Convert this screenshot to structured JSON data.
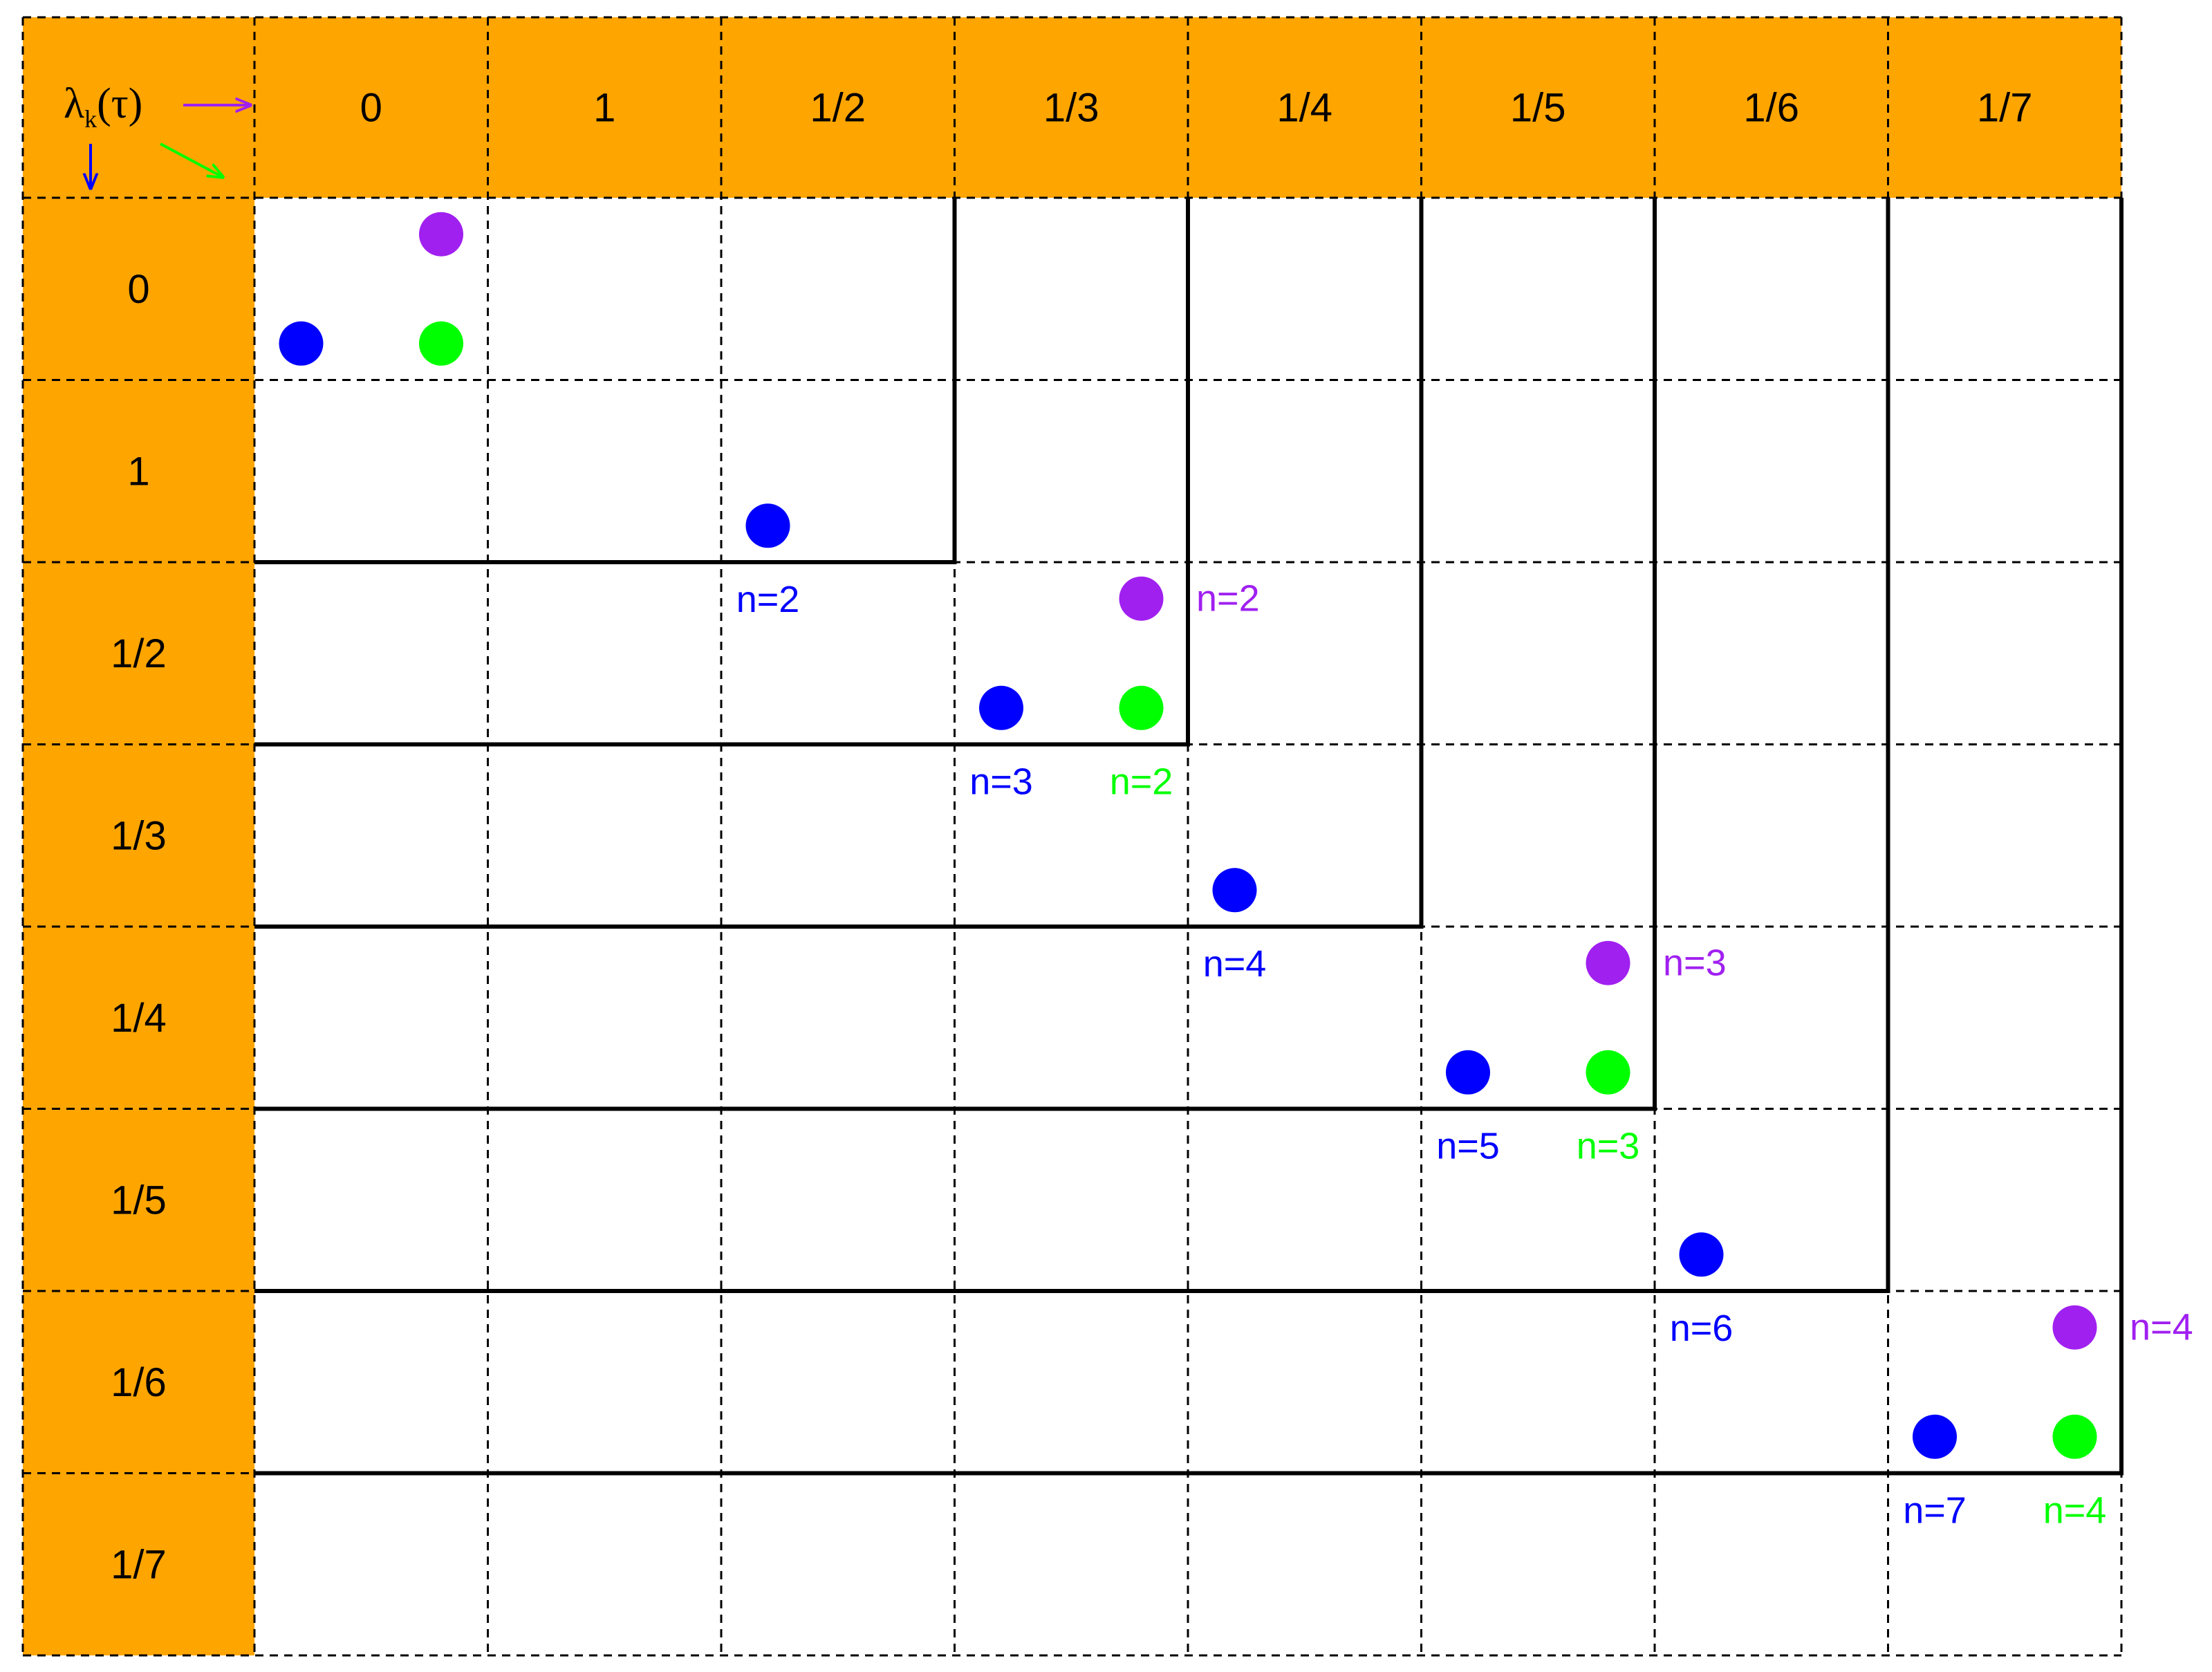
{
  "colors": {
    "header_fill": "#FFA500",
    "grid_line": "#000000",
    "boundary_line": "#000000",
    "blue": "#0000FF",
    "purple": "#A020F0",
    "green": "#00FF00",
    "background": "#FFFFFF"
  },
  "corner": {
    "symbol": "λ",
    "subscript": "k",
    "argument": "(τ)",
    "arrows": [
      {
        "direction": "right",
        "color": "purple"
      },
      {
        "direction": "down",
        "color": "blue"
      },
      {
        "direction": "diagonal",
        "color": "green"
      }
    ]
  },
  "column_headers": [
    "0",
    "1",
    "1/2",
    "1/3",
    "1/4",
    "1/5",
    "1/6",
    "1/7"
  ],
  "row_headers": [
    "0",
    "1",
    "1/2",
    "1/3",
    "1/4",
    "1/5",
    "1/6",
    "1/7"
  ],
  "staircase_boundaries": [
    {
      "row": 1,
      "col": 2
    },
    {
      "row": 2,
      "col": 3
    },
    {
      "row": 3,
      "col": 4
    },
    {
      "row": 4,
      "col": 5
    },
    {
      "row": 5,
      "col": 6
    },
    {
      "row": 6,
      "col": 7
    }
  ],
  "points": [
    {
      "color": "purple",
      "row": 0,
      "col": 0,
      "sub": "top",
      "label": ""
    },
    {
      "color": "blue",
      "row": 0,
      "col": 0,
      "sub": "bottom-left",
      "label": ""
    },
    {
      "color": "green",
      "row": 0,
      "col": 0,
      "sub": "bottom-right",
      "label": ""
    },
    {
      "color": "blue",
      "row": 1,
      "col": 2,
      "sub": "bottom-left",
      "label": "n=2"
    },
    {
      "color": "purple",
      "row": 2,
      "col": 3,
      "sub": "top",
      "label": "n=2"
    },
    {
      "color": "blue",
      "row": 2,
      "col": 3,
      "sub": "bottom-left",
      "label": "n=3"
    },
    {
      "color": "green",
      "row": 2,
      "col": 3,
      "sub": "bottom-right",
      "label": "n=2"
    },
    {
      "color": "blue",
      "row": 3,
      "col": 4,
      "sub": "bottom-left",
      "label": "n=4"
    },
    {
      "color": "purple",
      "row": 4,
      "col": 5,
      "sub": "top",
      "label": "n=3"
    },
    {
      "color": "blue",
      "row": 4,
      "col": 5,
      "sub": "bottom-left",
      "label": "n=5"
    },
    {
      "color": "green",
      "row": 4,
      "col": 5,
      "sub": "bottom-right",
      "label": "n=3"
    },
    {
      "color": "blue",
      "row": 5,
      "col": 6,
      "sub": "bottom-left",
      "label": "n=6"
    },
    {
      "color": "purple",
      "row": 6,
      "col": 7,
      "sub": "top",
      "label": "n=4"
    },
    {
      "color": "blue",
      "row": 6,
      "col": 7,
      "sub": "bottom-left",
      "label": "n=7"
    },
    {
      "color": "green",
      "row": 6,
      "col": 7,
      "sub": "bottom-right",
      "label": "n=4"
    }
  ]
}
